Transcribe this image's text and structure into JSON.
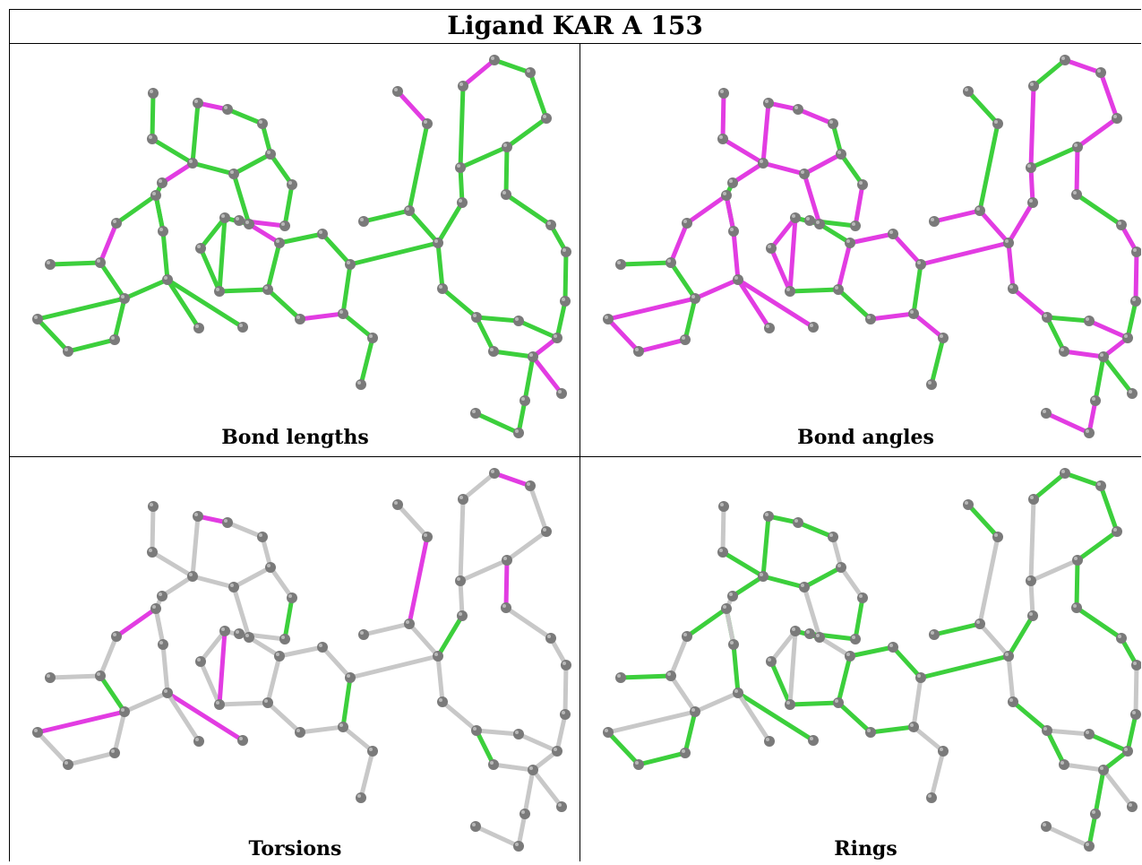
{
  "title": "Ligand KAR A 153",
  "panels": [
    {
      "caption": "Bond lengths"
    },
    {
      "caption": "Bond angles"
    },
    {
      "caption": "Torsions"
    },
    {
      "caption": "Rings"
    }
  ],
  "colors": {
    "green": "#3ccf3c",
    "magenta": "#e23ce2",
    "gray": "#c8c8c8",
    "atom": "#7a7a7a",
    "atom_highlight": "#b8b8b8"
  },
  "legend_note": ""
}
